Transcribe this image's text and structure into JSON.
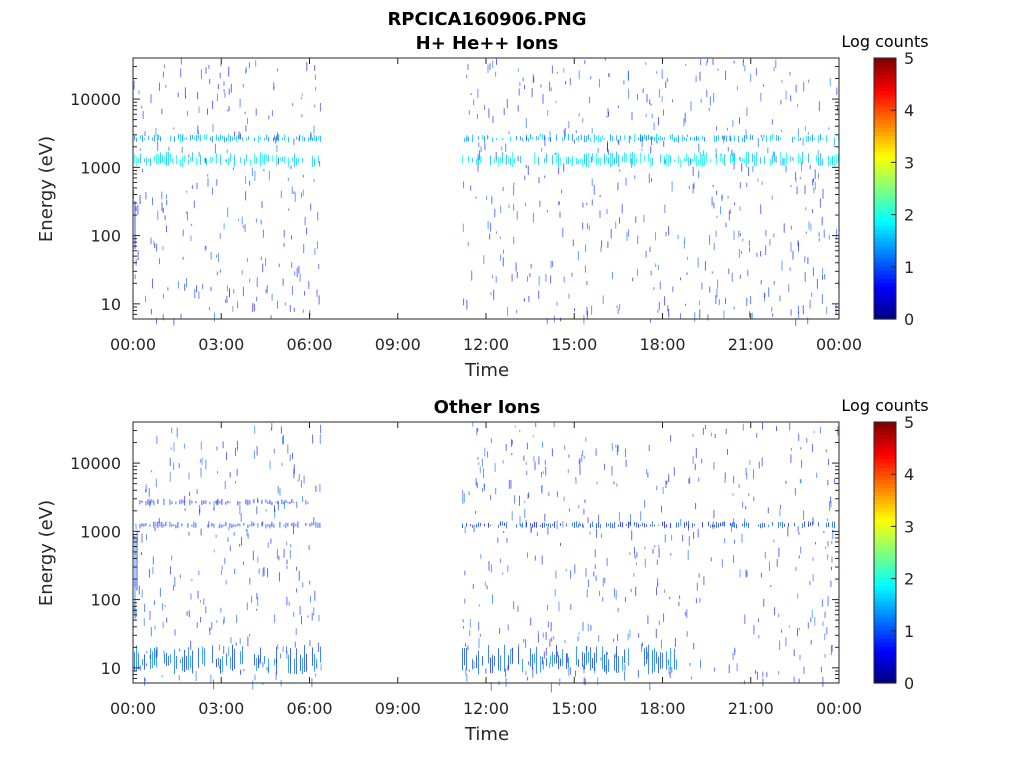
{
  "figure_title": "RPCICA160906.PNG",
  "chart_data": [
    {
      "type": "heatmap",
      "title": "H+ He++ Ions",
      "xlabel": "Time",
      "ylabel": "Energy (eV)",
      "x_ticks": [
        "00:00",
        "03:00",
        "06:00",
        "09:00",
        "12:00",
        "15:00",
        "18:00",
        "21:00",
        "00:00"
      ],
      "x_range_hours": [
        0,
        24
      ],
      "y_scale": "log",
      "y_range": [
        6,
        40000
      ],
      "y_ticks": [
        {
          "value": 10,
          "label": "10"
        },
        {
          "value": 100,
          "label": "100"
        },
        {
          "value": 1000,
          "label": "1000"
        },
        {
          "value": 10000,
          "label": "10000"
        }
      ],
      "data_gaps_hours": [
        [
          6.4,
          11.2
        ]
      ],
      "bands": [
        {
          "energy_low": 1000,
          "energy_high": 1700,
          "log_counts": 1.8,
          "segments_hours": [
            [
              0.05,
              6.4
            ],
            [
              11.2,
              24
            ]
          ]
        },
        {
          "energy_low": 2300,
          "energy_high": 3100,
          "log_counts": 1.5,
          "segments_hours": [
            [
              0.05,
              6.4
            ],
            [
              11.2,
              24
            ]
          ]
        },
        {
          "energy_low": 50,
          "energy_high": 1200,
          "log_counts": 1.0,
          "segments_hours": [
            [
              0,
              0.2
            ]
          ]
        }
      ],
      "colorbar": {
        "label": "Log counts",
        "range": [
          0,
          5
        ],
        "ticks": [
          "0",
          "1",
          "2",
          "3",
          "4",
          "5"
        ]
      }
    },
    {
      "type": "heatmap",
      "title": "Other Ions",
      "xlabel": "Time",
      "ylabel": "Energy (eV)",
      "x_ticks": [
        "00:00",
        "03:00",
        "06:00",
        "09:00",
        "12:00",
        "15:00",
        "18:00",
        "21:00",
        "00:00"
      ],
      "x_range_hours": [
        0,
        24
      ],
      "y_scale": "log",
      "y_range": [
        6,
        40000
      ],
      "y_ticks": [
        {
          "value": 10,
          "label": "10"
        },
        {
          "value": 100,
          "label": "100"
        },
        {
          "value": 1000,
          "label": "1000"
        },
        {
          "value": 10000,
          "label": "10000"
        }
      ],
      "data_gaps_hours": [
        [
          6.4,
          11.2
        ]
      ],
      "bands": [
        {
          "energy_low": 1100,
          "energy_high": 1400,
          "log_counts": 0.9,
          "segments_hours": [
            [
              0.1,
              6.4
            ],
            [
              11.2,
              24
            ]
          ]
        },
        {
          "energy_low": 2400,
          "energy_high": 3000,
          "log_counts": 0.8,
          "segments_hours": [
            [
              0.1,
              6.0
            ]
          ]
        },
        {
          "energy_low": 8,
          "energy_high": 22,
          "log_counts": 1.1,
          "segments_hours": [
            [
              0.05,
              6.4
            ],
            [
              11.2,
              18.5
            ]
          ]
        },
        {
          "energy_low": 50,
          "energy_high": 1200,
          "log_counts": 1.0,
          "segments_hours": [
            [
              0,
              0.2
            ]
          ]
        }
      ],
      "colorbar": {
        "label": "Log counts",
        "range": [
          0,
          5
        ],
        "ticks": [
          "0",
          "1",
          "2",
          "3",
          "4",
          "5"
        ]
      }
    }
  ]
}
